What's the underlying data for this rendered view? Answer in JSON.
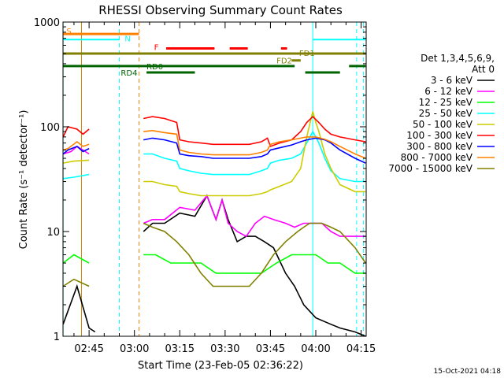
{
  "chart_data": {
    "type": "line",
    "title": "RHESSI Observing Summary Count Rates",
    "xlabel": "Start Time (23-Feb-05 02:36:22)",
    "ylabel": "Count Rate (s⁻¹ detector⁻¹)",
    "ylog": true,
    "ylim": [
      1,
      1000
    ],
    "xlim_minutes": [
      36.37,
      136.67
    ],
    "x_ticks": [
      {
        "label": "02:45",
        "minutes": 45
      },
      {
        "label": "03:00",
        "minutes": 60
      },
      {
        "label": "03:15",
        "minutes": 75
      },
      {
        "label": "03:30",
        "minutes": 90
      },
      {
        "label": "03:45",
        "minutes": 105
      },
      {
        "label": "04:00",
        "minutes": 120
      },
      {
        "label": "04:15",
        "minutes": 135
      }
    ],
    "y_ticks": [
      {
        "label": "1",
        "value": 1
      },
      {
        "label": "10",
        "value": 10
      },
      {
        "label": "100",
        "value": 100
      },
      {
        "label": "1000",
        "value": 1000
      }
    ],
    "legend": {
      "header1": "Det 1,3,4,5,6,9,",
      "header2": "Att 0",
      "placement": "right"
    },
    "series": [
      {
        "name": "3 - 6 keV",
        "color": "#000000",
        "points": [
          [
            36.4,
            1.3
          ],
          [
            41,
            3
          ],
          [
            45,
            1.2
          ],
          [
            47,
            1.1
          ],
          [
            63,
            10
          ],
          [
            66,
            12
          ],
          [
            70,
            12
          ],
          [
            75,
            15
          ],
          [
            80,
            14
          ],
          [
            84,
            22
          ],
          [
            87,
            13
          ],
          [
            89,
            20
          ],
          [
            91,
            13
          ],
          [
            94,
            8
          ],
          [
            97,
            9
          ],
          [
            100,
            9
          ],
          [
            103,
            8
          ],
          [
            106,
            7
          ],
          [
            110,
            4
          ],
          [
            113,
            3
          ],
          [
            116,
            2
          ],
          [
            120,
            1.5
          ],
          [
            125,
            1.3
          ],
          [
            128,
            1.2
          ],
          [
            133,
            1.1
          ],
          [
            136.5,
            1
          ]
        ]
      },
      {
        "name": "6 - 12 keV",
        "color": "#ff00ff",
        "points": [
          [
            36.4,
            55
          ],
          [
            39,
            58
          ],
          [
            41,
            65
          ],
          [
            43,
            60
          ],
          [
            45,
            55
          ],
          [
            63,
            12
          ],
          [
            66,
            13
          ],
          [
            70,
            13
          ],
          [
            75,
            17
          ],
          [
            80,
            16
          ],
          [
            84,
            22
          ],
          [
            87,
            13
          ],
          [
            89,
            20
          ],
          [
            91,
            12
          ],
          [
            94,
            10
          ],
          [
            97,
            9
          ],
          [
            100,
            12
          ],
          [
            103,
            14
          ],
          [
            106,
            13
          ],
          [
            110,
            12
          ],
          [
            113,
            11
          ],
          [
            116,
            12
          ],
          [
            118,
            12
          ],
          [
            120,
            12
          ],
          [
            122,
            12
          ],
          [
            125,
            10
          ],
          [
            128,
            9
          ],
          [
            133,
            9
          ],
          [
            136.5,
            9
          ]
        ]
      },
      {
        "name": "12 - 25 keV",
        "color": "#00ff00",
        "points": [
          [
            36.4,
            5
          ],
          [
            40,
            6
          ],
          [
            45,
            5
          ],
          [
            63,
            6
          ],
          [
            67,
            6
          ],
          [
            72,
            5
          ],
          [
            77,
            5
          ],
          [
            82,
            5
          ],
          [
            87,
            4
          ],
          [
            92,
            4
          ],
          [
            97,
            4
          ],
          [
            102,
            4
          ],
          [
            107,
            5
          ],
          [
            112,
            6
          ],
          [
            116,
            6
          ],
          [
            118,
            6
          ],
          [
            120,
            6
          ],
          [
            124,
            5
          ],
          [
            128,
            5
          ],
          [
            133,
            4
          ],
          [
            136.5,
            4
          ]
        ]
      },
      {
        "name": "25 - 50 keV",
        "color": "#00ffff",
        "points": [
          [
            36.4,
            32
          ],
          [
            40,
            33
          ],
          [
            45,
            35
          ],
          [
            63,
            55
          ],
          [
            66,
            55
          ],
          [
            70,
            50
          ],
          [
            74,
            47
          ],
          [
            75,
            40
          ],
          [
            78,
            38
          ],
          [
            82,
            36
          ],
          [
            86,
            35
          ],
          [
            90,
            35
          ],
          [
            94,
            35
          ],
          [
            98,
            35
          ],
          [
            102,
            38
          ],
          [
            104,
            40
          ],
          [
            105,
            45
          ],
          [
            108,
            48
          ],
          [
            112,
            50
          ],
          [
            115,
            55
          ],
          [
            117,
            70
          ],
          [
            119,
            90
          ],
          [
            120,
            80
          ],
          [
            121,
            70
          ],
          [
            123,
            50
          ],
          [
            125,
            38
          ],
          [
            128,
            32
          ],
          [
            133,
            30
          ],
          [
            136.5,
            30
          ]
        ]
      },
      {
        "name": "50 - 100 keV",
        "color": "#cccc00",
        "points": [
          [
            36.4,
            45
          ],
          [
            40,
            47
          ],
          [
            45,
            48
          ],
          [
            63,
            30
          ],
          [
            66,
            30
          ],
          [
            70,
            28
          ],
          [
            74,
            27
          ],
          [
            75,
            24
          ],
          [
            78,
            23
          ],
          [
            82,
            22
          ],
          [
            86,
            22
          ],
          [
            90,
            22
          ],
          [
            94,
            22
          ],
          [
            98,
            22
          ],
          [
            102,
            23
          ],
          [
            104,
            24
          ],
          [
            105,
            25
          ],
          [
            108,
            27
          ],
          [
            112,
            30
          ],
          [
            115,
            40
          ],
          [
            117,
            80
          ],
          [
            119,
            140
          ],
          [
            120,
            110
          ],
          [
            121,
            90
          ],
          [
            123,
            55
          ],
          [
            125,
            40
          ],
          [
            128,
            28
          ],
          [
            133,
            24
          ],
          [
            136.5,
            24
          ]
        ]
      },
      {
        "name": "100 - 300 keV",
        "color": "#ff0000",
        "points": [
          [
            36.4,
            80
          ],
          [
            38,
            100
          ],
          [
            41,
            95
          ],
          [
            43,
            85
          ],
          [
            45,
            95
          ],
          [
            63,
            120
          ],
          [
            66,
            125
          ],
          [
            70,
            120
          ],
          [
            74,
            110
          ],
          [
            75,
            75
          ],
          [
            78,
            72
          ],
          [
            82,
            70
          ],
          [
            86,
            68
          ],
          [
            90,
            68
          ],
          [
            94,
            68
          ],
          [
            98,
            68
          ],
          [
            102,
            72
          ],
          [
            104,
            78
          ],
          [
            105,
            65
          ],
          [
            108,
            70
          ],
          [
            112,
            75
          ],
          [
            115,
            90
          ],
          [
            117,
            110
          ],
          [
            119,
            125
          ],
          [
            121,
            110
          ],
          [
            123,
            95
          ],
          [
            125,
            85
          ],
          [
            128,
            80
          ],
          [
            133,
            75
          ],
          [
            136.5,
            72
          ]
        ]
      },
      {
        "name": "300 - 800 keV",
        "color": "#0000ff",
        "points": [
          [
            36.4,
            55
          ],
          [
            38,
            60
          ],
          [
            41,
            65
          ],
          [
            43,
            58
          ],
          [
            45,
            62
          ],
          [
            63,
            75
          ],
          [
            66,
            78
          ],
          [
            70,
            75
          ],
          [
            74,
            70
          ],
          [
            75,
            55
          ],
          [
            78,
            53
          ],
          [
            82,
            52
          ],
          [
            86,
            50
          ],
          [
            90,
            50
          ],
          [
            94,
            50
          ],
          [
            98,
            50
          ],
          [
            102,
            52
          ],
          [
            104,
            55
          ],
          [
            105,
            60
          ],
          [
            108,
            63
          ],
          [
            112,
            67
          ],
          [
            115,
            72
          ],
          [
            117,
            75
          ],
          [
            120,
            78
          ],
          [
            123,
            75
          ],
          [
            125,
            70
          ],
          [
            128,
            60
          ],
          [
            133,
            50
          ],
          [
            136.5,
            45
          ]
        ]
      },
      {
        "name": "800 - 7000 keV",
        "color": "#ff8000",
        "points": [
          [
            36.4,
            60
          ],
          [
            38,
            62
          ],
          [
            41,
            72
          ],
          [
            43,
            65
          ],
          [
            45,
            68
          ],
          [
            63,
            90
          ],
          [
            66,
            92
          ],
          [
            70,
            88
          ],
          [
            74,
            85
          ],
          [
            75,
            60
          ],
          [
            78,
            57
          ],
          [
            82,
            55
          ],
          [
            86,
            54
          ],
          [
            90,
            54
          ],
          [
            94,
            54
          ],
          [
            98,
            54
          ],
          [
            102,
            57
          ],
          [
            104,
            60
          ],
          [
            105,
            68
          ],
          [
            108,
            72
          ],
          [
            112,
            75
          ],
          [
            115,
            78
          ],
          [
            117,
            80
          ],
          [
            120,
            80
          ],
          [
            123,
            76
          ],
          [
            125,
            72
          ],
          [
            128,
            65
          ],
          [
            133,
            55
          ],
          [
            136.5,
            50
          ]
        ]
      },
      {
        "name": "7000 - 15000 keV",
        "color": "#808000",
        "points": [
          [
            36.4,
            3
          ],
          [
            40,
            3.5
          ],
          [
            45,
            3
          ],
          [
            63,
            12
          ],
          [
            66,
            11
          ],
          [
            70,
            10
          ],
          [
            74,
            8
          ],
          [
            78,
            6
          ],
          [
            82,
            4
          ],
          [
            86,
            3
          ],
          [
            90,
            3
          ],
          [
            94,
            3
          ],
          [
            98,
            3
          ],
          [
            102,
            4
          ],
          [
            106,
            6
          ],
          [
            110,
            8
          ],
          [
            114,
            10
          ],
          [
            116,
            11
          ],
          [
            118,
            12
          ],
          [
            120,
            12
          ],
          [
            122,
            12
          ],
          [
            125,
            11
          ],
          [
            128,
            10
          ],
          [
            133,
            7
          ],
          [
            136.5,
            5
          ]
        ]
      }
    ],
    "vertical_lines": [
      {
        "minutes": 36.4,
        "color": "#00ffff",
        "style": "solid"
      },
      {
        "minutes": 42.5,
        "color": "#cc8800",
        "style": "solid"
      },
      {
        "minutes": 55.0,
        "color": "#00ffff",
        "style": "dashed"
      },
      {
        "minutes": 61.5,
        "color": "#ff8000",
        "style": "dashed"
      },
      {
        "minutes": 119.0,
        "color": "#00ffff",
        "style": "solid"
      },
      {
        "minutes": 133.5,
        "color": "#00ffff",
        "style": "dashed"
      },
      {
        "minutes": 135.8,
        "color": "#00ffff",
        "style": "dashed"
      }
    ],
    "flag_bars": [
      {
        "label": "S",
        "color": "#ff8000",
        "y_value": 770,
        "segments": [
          [
            36.4,
            61.5
          ]
        ],
        "label_minutes": 37.5,
        "label_value": 830,
        "width": 3
      },
      {
        "label": "N",
        "color": "#00ffff",
        "y_value": 680,
        "segments": [
          [
            36.4,
            55
          ],
          [
            119,
            136.5
          ]
        ],
        "label_minutes": 56.8,
        "label_value": 700,
        "width": 2
      },
      {
        "label": "F",
        "color": "#ff0000",
        "y_value": 560,
        "segments": [
          [
            70.5,
            86.5
          ],
          [
            91.5,
            97.5
          ],
          [
            108.5,
            110.5
          ]
        ],
        "label_minutes": 66.5,
        "label_value": 580,
        "width": 3
      },
      {
        "label": "FD1",
        "color": "#808000",
        "y_value": 500,
        "segments": [
          [
            36.4,
            136.5
          ]
        ],
        "label_minutes": 114.5,
        "label_value": 510,
        "width": 3
      },
      {
        "label": "FD2",
        "color": "#808000",
        "y_value": 430,
        "segments": [
          [
            112,
            115
          ]
        ],
        "label_minutes": 107,
        "label_value": 430,
        "width": 3
      },
      {
        "label": "RD0",
        "color": "#006400",
        "y_value": 380,
        "segments": [
          [
            36.4,
            113
          ],
          [
            131,
            136.5
          ]
        ],
        "label_minutes": 64,
        "label_value": 380,
        "width": 3
      },
      {
        "label": "RD4",
        "color": "#006400",
        "y_value": 330,
        "segments": [
          [
            64,
            80
          ],
          [
            116.5,
            128
          ]
        ],
        "label_minutes": 55.5,
        "label_value": 330,
        "width": 3
      }
    ],
    "grid": false
  },
  "footer": {
    "date_stamp": "15-Oct-2021 04:18"
  }
}
